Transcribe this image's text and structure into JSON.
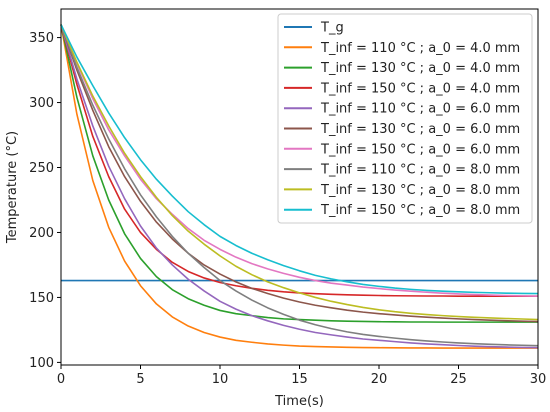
{
  "chart_data": {
    "type": "line",
    "xlabel": "Time(s)",
    "ylabel": "Temperature (°C)",
    "xlim": [
      0,
      30
    ],
    "ylim": [
      98,
      372
    ],
    "xticks": [
      0,
      5,
      10,
      15,
      20,
      25,
      30
    ],
    "yticks": [
      100,
      150,
      200,
      250,
      300,
      350
    ],
    "grid": false,
    "legend_position": "upper-right",
    "x": [
      0,
      1,
      2,
      3,
      4,
      5,
      6,
      7,
      8,
      9,
      10,
      11,
      12,
      13,
      14,
      15,
      16,
      17,
      18,
      19,
      20,
      21,
      22,
      23,
      24,
      25,
      26,
      27,
      28,
      29,
      30
    ],
    "series": [
      {
        "name": "T_g",
        "color": "#1f77b4",
        "values": [
          163,
          163,
          163,
          163,
          163,
          163,
          163,
          163,
          163,
          163,
          163,
          163,
          163,
          163,
          163,
          163,
          163,
          163,
          163,
          163,
          163,
          163,
          163,
          163,
          163,
          163,
          163,
          163,
          163,
          163,
          163
        ]
      },
      {
        "name": "T_inf = 110 °C ; a_0 = 4.0 mm",
        "color": "#ff7f0e",
        "values": [
          360,
          291,
          240,
          204,
          178,
          159,
          145,
          135,
          128,
          123,
          119.5,
          117,
          115.5,
          114.2,
          113.3,
          112.6,
          112.2,
          111.9,
          111.6,
          111.4,
          111.3,
          111.2,
          111.1,
          111.1,
          111,
          111,
          111,
          111,
          111,
          111,
          111
        ]
      },
      {
        "name": "T_inf = 130 °C ; a_0 = 4.0 mm",
        "color": "#2ca02c",
        "values": [
          360,
          304,
          259,
          225,
          199,
          180,
          166,
          156,
          149,
          144,
          140,
          137.5,
          136,
          134.5,
          133.5,
          133,
          132.5,
          132,
          131.7,
          131.5,
          131.3,
          131.2,
          131.1,
          131.1,
          131,
          131,
          131,
          131,
          131,
          131,
          131
        ]
      },
      {
        "name": "T_inf = 150 °C ; a_0 = 4.0 mm",
        "color": "#d62728",
        "values": [
          360,
          314,
          274,
          243,
          218,
          200,
          187,
          177,
          170,
          165,
          161.5,
          159,
          157,
          155.5,
          154.3,
          153.5,
          152.9,
          152.4,
          152,
          151.7,
          151.5,
          151.3,
          151.2,
          151.1,
          151.1,
          151,
          151,
          151,
          151,
          151,
          151
        ]
      },
      {
        "name": "T_inf = 110 °C ; a_0 = 6.0 mm",
        "color": "#9467bd",
        "values": [
          360,
          318,
          282,
          251,
          226,
          205,
          188,
          175,
          164,
          155,
          147,
          141,
          136,
          132,
          128.5,
          125.5,
          123,
          121.2,
          119.5,
          118,
          117,
          116,
          115,
          114.2,
          113.6,
          113,
          112.5,
          112.1,
          111.8,
          111.5,
          111.3
        ]
      },
      {
        "name": "T_inf = 130 °C ; a_0 = 6.0 mm",
        "color": "#8c564b",
        "values": [
          360,
          325,
          294,
          266,
          243,
          224,
          208,
          195,
          184,
          175,
          168,
          162,
          157,
          153,
          149.5,
          146.5,
          144,
          142,
          140.2,
          138.7,
          137.5,
          136.5,
          135.6,
          134.8,
          134.1,
          133.5,
          133,
          132.5,
          132.1,
          131.7,
          131.4
        ]
      },
      {
        "name": "T_inf = 150 °C ; a_0 = 6.0 mm",
        "color": "#e377c2",
        "values": [
          360,
          330,
          303,
          279,
          259,
          241,
          226,
          214,
          203,
          194,
          187,
          181,
          176,
          172,
          168.5,
          165.5,
          163,
          161,
          159.5,
          158,
          156.8,
          155.7,
          154.8,
          154,
          153.3,
          152.7,
          152.2,
          151.8,
          151.5,
          151.2,
          151
        ]
      },
      {
        "name": "T_inf = 110 °C ; a_0 = 8.0 mm",
        "color": "#7f7f7f",
        "values": [
          360,
          327,
          298,
          272,
          249,
          229,
          212,
          197,
          184,
          173,
          163,
          155,
          148,
          142,
          137,
          132.5,
          129,
          126,
          123.5,
          121.5,
          120,
          118.7,
          117.5,
          116.5,
          115.7,
          115,
          114.4,
          113.9,
          113.5,
          113.2,
          112.9
        ]
      },
      {
        "name": "T_inf = 130 °C ; a_0 = 8.0 mm",
        "color": "#bcbd22",
        "values": [
          360,
          331,
          305,
          282,
          261,
          243,
          227,
          213,
          201,
          191,
          182,
          174,
          167.5,
          162,
          157.5,
          153.5,
          150,
          147,
          144.5,
          142.3,
          140.5,
          139,
          137.8,
          136.8,
          136,
          135.3,
          134.7,
          134.2,
          133.8,
          133.4,
          133
        ]
      },
      {
        "name": "T_inf = 150 °C ; a_0 = 8.0 mm",
        "color": "#17becf",
        "values": [
          360,
          335,
          313,
          292,
          273,
          256,
          241,
          228,
          216,
          206,
          197,
          190,
          184,
          179,
          174.5,
          170.5,
          167,
          164.3,
          162,
          160,
          158.5,
          157.2,
          156.2,
          155.4,
          154.8,
          154.3,
          153.9,
          153.6,
          153.3,
          153.1,
          153
        ]
      }
    ]
  }
}
